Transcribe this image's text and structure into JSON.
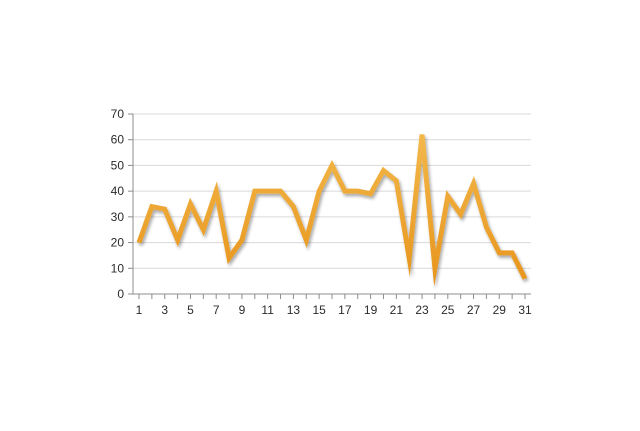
{
  "colors": {
    "line_top": "#F2B84B",
    "line_bottom": "#E8961E",
    "shadow": "#BDBDBD",
    "grid": "#D9D9D9",
    "axis": "#8C8C8C",
    "text": "#2B2B2B",
    "background": "#FFFFFF"
  },
  "chart_data": {
    "type": "line",
    "title": "",
    "xlabel": "",
    "ylabel": "",
    "grid": true,
    "legend": "none",
    "ylim": [
      0,
      70
    ],
    "yticks": [
      "0",
      "10",
      "20",
      "30",
      "40",
      "50",
      "60",
      "70"
    ],
    "x": [
      1,
      2,
      3,
      4,
      5,
      6,
      7,
      8,
      9,
      10,
      11,
      12,
      13,
      14,
      15,
      16,
      17,
      18,
      19,
      20,
      21,
      22,
      23,
      24,
      25,
      26,
      27,
      28,
      29,
      30,
      31
    ],
    "xtick_labels": [
      "1",
      "3",
      "5",
      "7",
      "9",
      "11",
      "13",
      "15",
      "17",
      "19",
      "21",
      "23",
      "25",
      "27",
      "29",
      "31"
    ],
    "series": [
      {
        "values": [
          20,
          34,
          33,
          21,
          35,
          25,
          40,
          14,
          21,
          40,
          40,
          40,
          34,
          21,
          40,
          50,
          40,
          40,
          39,
          48,
          44,
          14,
          62,
          10,
          38,
          31,
          43,
          26,
          16,
          16,
          6
        ]
      }
    ]
  }
}
